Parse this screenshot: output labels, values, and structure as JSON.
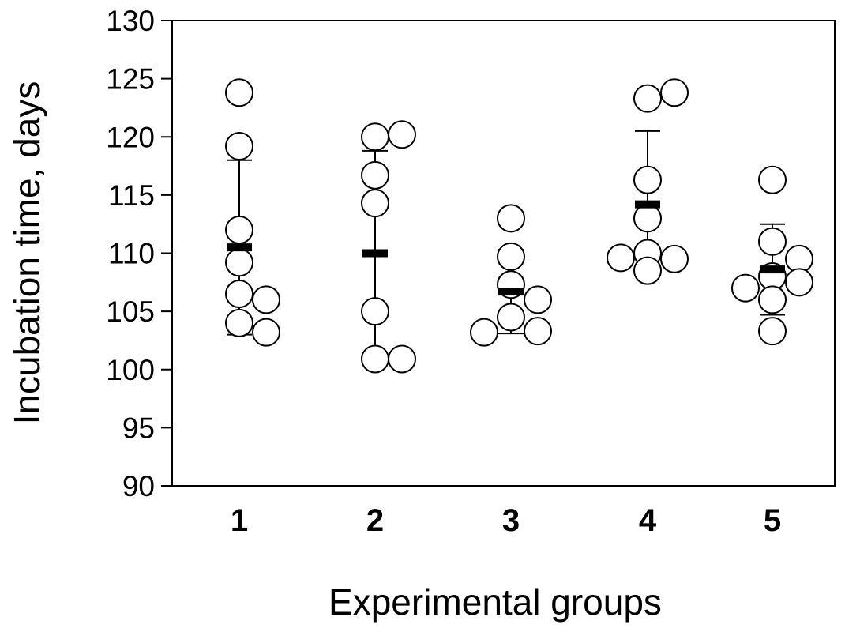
{
  "chart_data": {
    "type": "scatter",
    "title": "",
    "xlabel": "Experimental groups",
    "ylabel": "Incubation time, days",
    "ylim": [
      90,
      130
    ],
    "yticks": [
      90,
      95,
      100,
      105,
      110,
      115,
      120,
      125,
      130
    ],
    "categories": [
      "1",
      "2",
      "3",
      "4",
      "5"
    ],
    "grid": false,
    "legend": "none",
    "groups": [
      {
        "category": "1",
        "points": [
          123.8,
          119.2,
          112.0,
          109.2,
          106.5,
          106.0,
          104.0,
          103.2
        ],
        "mean": 110.5,
        "error_upper": 118.0,
        "error_lower": 103.0
      },
      {
        "category": "2",
        "points": [
          120.0,
          120.2,
          116.7,
          114.3,
          105.0,
          100.9,
          100.9
        ],
        "mean": 110.0,
        "error_upper": 118.8,
        "error_lower": 101.2
      },
      {
        "category": "3",
        "points": [
          113.0,
          109.7,
          107.3,
          106.0,
          104.5,
          103.3,
          103.2
        ],
        "mean": 106.7,
        "error_upper": 110.3,
        "error_lower": 103.1
      },
      {
        "category": "4",
        "points": [
          123.3,
          123.8,
          116.3,
          113.0,
          110.0,
          109.5,
          109.6,
          108.5
        ],
        "mean": 114.2,
        "error_upper": 120.5,
        "error_lower": 108.0
      },
      {
        "category": "5",
        "points": [
          116.3,
          111.0,
          109.5,
          108.0,
          107.5,
          107.0,
          106.0,
          103.3
        ],
        "mean": 108.6,
        "error_upper": 112.5,
        "error_lower": 104.7
      }
    ],
    "colors": {
      "marker_fill": "#ffffff",
      "marker_stroke": "#000000",
      "mean_bar": "#000000",
      "axis": "#000000"
    }
  }
}
